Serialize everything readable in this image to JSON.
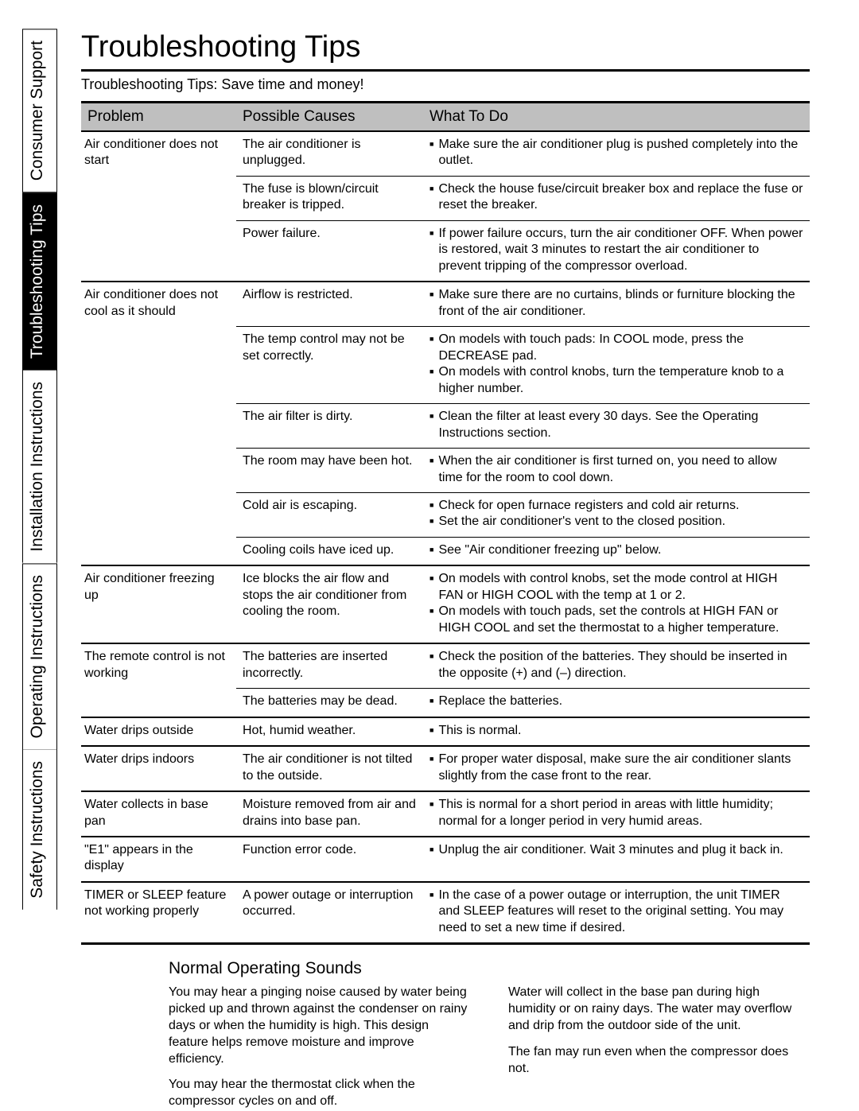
{
  "tabs": [
    {
      "label": "Safety Instructions",
      "active": false
    },
    {
      "label": "Operating Instructions",
      "active": false
    },
    {
      "label": "Installation Instructions",
      "active": false
    },
    {
      "label": "Troubleshooting Tips",
      "active": true
    },
    {
      "label": "Consumer Support",
      "active": false
    }
  ],
  "title": "Troubleshooting Tips",
  "subtitle": "Troubleshooting Tips: Save time and money!",
  "columns": [
    "Problem",
    "Possible Causes",
    "What To Do"
  ],
  "problems": [
    {
      "problem": "Air conditioner does not start",
      "rows": [
        {
          "cause": "The air conditioner is unplugged.",
          "actions": [
            "Make sure the air conditioner plug is pushed completely into the outlet."
          ]
        },
        {
          "cause": "The fuse is blown/circuit breaker is tripped.",
          "actions": [
            "Check the house fuse/circuit breaker box and replace the fuse or reset the breaker."
          ]
        },
        {
          "cause": "Power failure.",
          "actions": [
            "If power failure occurs, turn the air conditioner OFF. When power is restored, wait 3 minutes to restart the air conditioner to prevent tripping of the compressor overload."
          ]
        }
      ]
    },
    {
      "problem": "Air conditioner does not cool as it should",
      "rows": [
        {
          "cause": "Airflow is restricted.",
          "actions": [
            "Make sure there are no curtains, blinds or furniture blocking the front of the air conditioner."
          ]
        },
        {
          "cause": "The temp control may not be set correctly.",
          "actions": [
            "On models with touch pads: In COOL mode, press the DECREASE pad.",
            "On models with control knobs, turn the temperature knob to a higher number."
          ]
        },
        {
          "cause": "The air filter is dirty.",
          "actions": [
            "Clean the filter at least every 30 days. See the Operating Instructions section."
          ]
        },
        {
          "cause": "The room may have been hot.",
          "actions": [
            "When the air conditioner is first turned on, you need to allow time for the room to cool down."
          ]
        },
        {
          "cause": "Cold air is escaping.",
          "actions": [
            "Check for open furnace registers and cold air returns.",
            "Set the air conditioner's vent to the closed position."
          ]
        },
        {
          "cause": "Cooling coils have iced up.",
          "actions": [
            "See \"Air conditioner freezing up\" below."
          ]
        }
      ]
    },
    {
      "problem": "Air conditioner freezing up",
      "rows": [
        {
          "cause": "Ice blocks the air flow and stops the air conditioner from cooling the room.",
          "actions": [
            "On models with control knobs, set the mode control at HIGH FAN or HIGH COOL with the temp at 1 or 2.",
            "On models with touch pads, set the controls at HIGH FAN or HIGH COOL and set the thermostat to a higher temperature."
          ]
        }
      ]
    },
    {
      "problem": "The remote control is not working",
      "rows": [
        {
          "cause": "The batteries are inserted incorrectly.",
          "actions": [
            "Check the position of the batteries. They should be inserted in the opposite (+) and (–) direction."
          ]
        },
        {
          "cause": "The batteries may be dead.",
          "actions": [
            "Replace the batteries."
          ]
        }
      ]
    },
    {
      "problem": "Water drips outside",
      "rows": [
        {
          "cause": "Hot, humid weather.",
          "actions": [
            "This is normal."
          ]
        }
      ]
    },
    {
      "problem": "Water drips indoors",
      "rows": [
        {
          "cause": "The air conditioner is not tilted to the outside.",
          "actions": [
            "For proper water disposal, make sure the air conditioner slants slightly from the case front to the rear."
          ]
        }
      ]
    },
    {
      "problem": "Water collects in base pan",
      "rows": [
        {
          "cause": "Moisture removed from air and drains into base pan.",
          "actions": [
            "This is normal for a short period in areas with little humidity; normal for a longer period in very humid areas."
          ]
        }
      ]
    },
    {
      "problem": "\"E1\" appears in the display",
      "rows": [
        {
          "cause": "Function error code.",
          "actions": [
            "Unplug the air conditioner. Wait 3 minutes and plug it back in."
          ]
        }
      ]
    },
    {
      "problem": "TIMER or SLEEP feature not working properly",
      "rows": [
        {
          "cause": "A power outage or interruption occurred.",
          "actions": [
            "In the case of a power outage or interruption, the unit TIMER and SLEEP features will reset to the original setting. You may need to set a new time if desired."
          ]
        }
      ]
    }
  ],
  "sounds": {
    "heading": "Normal Operating Sounds",
    "left": [
      "You may hear a pinging noise caused by water being picked up and thrown against the condenser on rainy days or when the humidity is high. This design feature helps remove moisture and improve efficiency.",
      "You may hear the thermostat click when the compressor cycles on and off."
    ],
    "right": [
      "Water will collect in the base pan during high humidity or on rainy days. The water may overflow and drip from the outdoor side of the unit.",
      "The fan may run even when the compressor does not."
    ]
  },
  "colors": {
    "header_bg": "#bfbfbf",
    "active_tab_bg": "#000000",
    "active_tab_fg": "#ffffff",
    "text": "#000000",
    "background": "#ffffff"
  }
}
